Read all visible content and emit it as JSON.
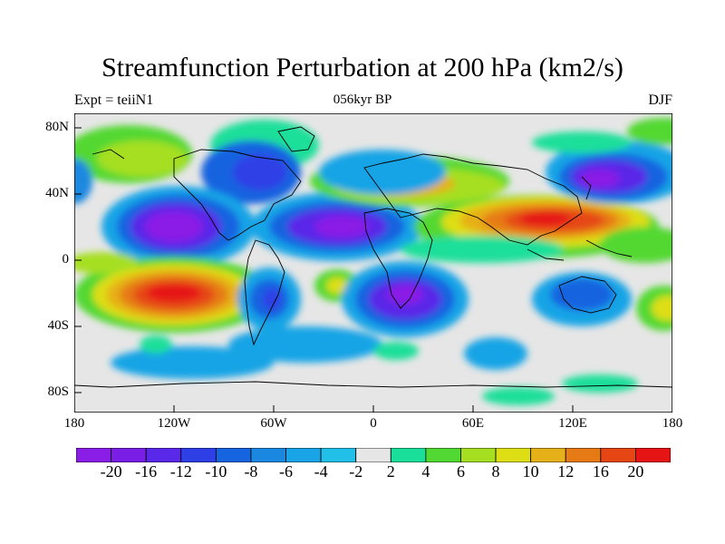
{
  "title": "Streamfunction Perturbation at 200 hPa (km2/s)",
  "left_label": "Expt = teiiN1",
  "center_label": "056kyr BP",
  "right_label": "DJF",
  "lat_labels": [
    "80N",
    "40N",
    "0",
    "40S",
    "80S"
  ],
  "lon_labels": [
    "180",
    "120W",
    "60W",
    "0",
    "60E",
    "120E",
    "180"
  ],
  "colorbar": {
    "labels": [
      "-20",
      "-16",
      "-12",
      "-10",
      "-8",
      "-6",
      "-4",
      "-2",
      "2",
      "4",
      "6",
      "8",
      "10",
      "12",
      "16",
      "20"
    ],
    "colors": [
      "#8a1ee6",
      "#7a1ee6",
      "#5a28e8",
      "#2f3fe6",
      "#1664e0",
      "#1a88e0",
      "#18a4e6",
      "#22bfe8",
      "#e6e6e6",
      "#1adf9a",
      "#52d832",
      "#a6df22",
      "#dede14",
      "#e6b018",
      "#e67a14",
      "#e64614",
      "#e61414"
    ]
  }
}
